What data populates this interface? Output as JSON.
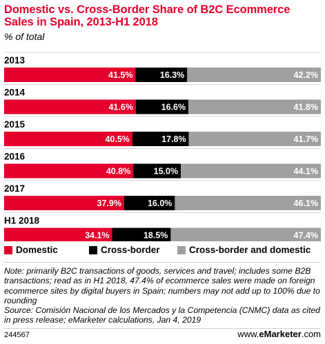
{
  "title": "Domestic vs. Cross-Border Share of B2C Ecommerce Sales in Spain, 2013-H1 2018",
  "subtitle": "% of total",
  "colors": {
    "domestic": "#e4002b",
    "cross_border": "#000000",
    "both": "#a0a0a0",
    "title": "#e4002b"
  },
  "legend": [
    {
      "label": "Domestic",
      "color": "#e4002b"
    },
    {
      "label": "Cross-border",
      "color": "#000000"
    },
    {
      "label": "Cross-border and domestic",
      "color": "#a0a0a0"
    }
  ],
  "chart_data": {
    "type": "bar",
    "orientation": "horizontal",
    "stacked": true,
    "categories": [
      "2013",
      "2014",
      "2015",
      "2016",
      "2017",
      "H1 2018"
    ],
    "series": [
      {
        "name": "Domestic",
        "values": [
          41.5,
          41.6,
          40.5,
          40.8,
          37.9,
          34.1
        ],
        "labels": [
          "41.5%",
          "41.6%",
          "40.5%",
          "40.8%",
          "37.9%",
          "34.1%"
        ]
      },
      {
        "name": "Cross-border",
        "values": [
          16.3,
          16.6,
          17.8,
          15.0,
          16.0,
          18.5
        ],
        "labels": [
          "16.3%",
          "16.6%",
          "17.8%",
          "15.0%",
          "16.0%",
          "18.5%"
        ]
      },
      {
        "name": "Cross-border and domestic",
        "values": [
          42.2,
          41.8,
          41.7,
          44.1,
          46.1,
          47.4
        ],
        "labels": [
          "42.2%",
          "41.8%",
          "41.7%",
          "44.1%",
          "46.1%",
          "47.4%"
        ]
      }
    ],
    "xlim": [
      0,
      100.0
    ],
    "grid": false,
    "legend_position": "bottom"
  },
  "note": "Note: primarily B2C transactions of goods, services and travel; includes some B2B transactions; read as in H1 2018, 47.4% of ecommerce sales were made on foreign ecommerce sites by digital buyers in Spain; numbers may not add up to 100% due to rounding",
  "source": "Source: Comisión Nacional de los Mercados y la Competencia (CNMC) data as cited in press release; eMarketer calculations, Jan 4, 2019",
  "footer_id": "244567",
  "brand": {
    "prefix": "www.",
    "name": "eMarketer",
    "suffix": ".com"
  }
}
